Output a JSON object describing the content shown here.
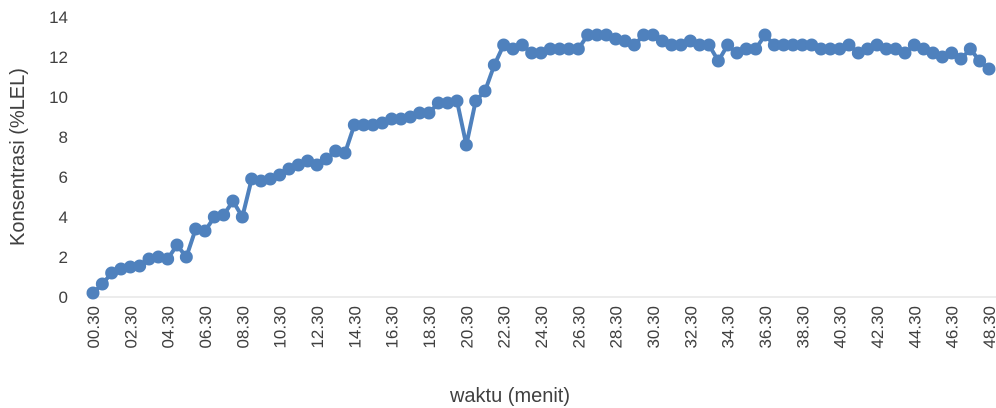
{
  "chart_data": {
    "type": "line",
    "ylabel": "Konsentrasi (%LEL)",
    "xlabel": "waktu (menit)",
    "categories": [
      "00.30",
      null,
      null,
      null,
      "02.30",
      null,
      null,
      null,
      "04.30",
      null,
      null,
      null,
      "06.30",
      null,
      null,
      null,
      "08.30",
      null,
      null,
      null,
      "10.30",
      null,
      null,
      null,
      "12.30",
      null,
      null,
      null,
      "14.30",
      null,
      null,
      null,
      "16.30",
      null,
      null,
      null,
      "18.30",
      null,
      null,
      null,
      "20.30",
      null,
      null,
      null,
      "22.30",
      null,
      null,
      null,
      "24.30",
      null,
      null,
      null,
      "26.30",
      null,
      null,
      null,
      "28.30",
      null,
      null,
      null,
      "30.30",
      null,
      null,
      null,
      "32.30",
      null,
      null,
      null,
      "34.30",
      null,
      null,
      null,
      "36.30",
      null,
      null,
      null,
      "38.30",
      null,
      null,
      null,
      "40.30",
      null,
      null,
      null,
      "42.30",
      null,
      null,
      null,
      "44.30",
      null,
      null,
      null,
      "46.30",
      null,
      null,
      null,
      "48.30"
    ],
    "series": [
      {
        "name": "Konsentrasi",
        "color": "#4f81bd",
        "values": [
          0.2,
          0.65,
          1.2,
          1.4,
          1.5,
          1.55,
          1.9,
          2.0,
          1.9,
          2.6,
          2.0,
          3.4,
          3.3,
          4.0,
          4.1,
          4.8,
          4.0,
          5.9,
          5.8,
          5.9,
          6.1,
          6.4,
          6.6,
          6.8,
          6.6,
          6.9,
          7.3,
          7.2,
          8.6,
          8.6,
          8.6,
          8.7,
          8.9,
          8.9,
          9.0,
          9.2,
          9.2,
          9.7,
          9.7,
          9.8,
          7.6,
          9.8,
          10.3,
          11.6,
          12.6,
          12.4,
          12.6,
          12.2,
          12.2,
          12.4,
          12.4,
          12.4,
          12.4,
          13.1,
          13.1,
          13.1,
          12.9,
          12.8,
          12.6,
          13.1,
          13.1,
          12.8,
          12.6,
          12.6,
          12.8,
          12.6,
          12.6,
          11.8,
          12.6,
          12.2,
          12.4,
          12.4,
          13.1,
          12.6,
          12.6,
          12.6,
          12.6,
          12.6,
          12.4,
          12.4,
          12.4,
          12.6,
          12.2,
          12.4,
          12.6,
          12.4,
          12.4,
          12.2,
          12.6,
          12.4,
          12.2,
          12.0,
          12.2,
          11.9,
          12.4,
          11.8,
          11.4
        ]
      }
    ],
    "ylim": [
      0,
      14
    ],
    "yticks": [
      0,
      2,
      4,
      6,
      8,
      10,
      12,
      14
    ],
    "grid": false
  }
}
